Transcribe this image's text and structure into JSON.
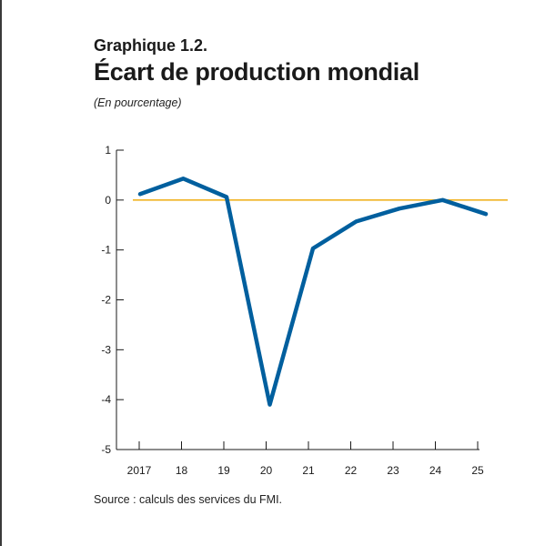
{
  "header": {
    "label": "Graphique 1.2.",
    "title": "Écart de production mondial",
    "subtitle": "(En pourcentage)"
  },
  "footer": {
    "source": "Source : calculs des services du FMI."
  },
  "colors": {
    "series": "#005f9e",
    "zero_line": "#f0b323",
    "axis": "#1a1a1a"
  },
  "chart_data": {
    "type": "line",
    "title": "",
    "xlabel": "",
    "ylabel": "",
    "x": [
      "2017",
      "18",
      "19",
      "20",
      "21",
      "22",
      "23",
      "24",
      "25"
    ],
    "series": [
      {
        "values": [
          0.12,
          0.43,
          0.06,
          -4.1,
          -0.97,
          -0.43,
          -0.17,
          0.0,
          -0.28
        ]
      }
    ],
    "ylim": [
      -5,
      1
    ],
    "yticks": [
      1,
      0,
      -1,
      -2,
      -3,
      -4,
      -5
    ],
    "yticklabels": [
      "1",
      "0",
      "-1",
      "-2",
      "-3",
      "-4",
      "-5"
    ],
    "reference_line": 0,
    "grid": false,
    "legend": "none"
  }
}
